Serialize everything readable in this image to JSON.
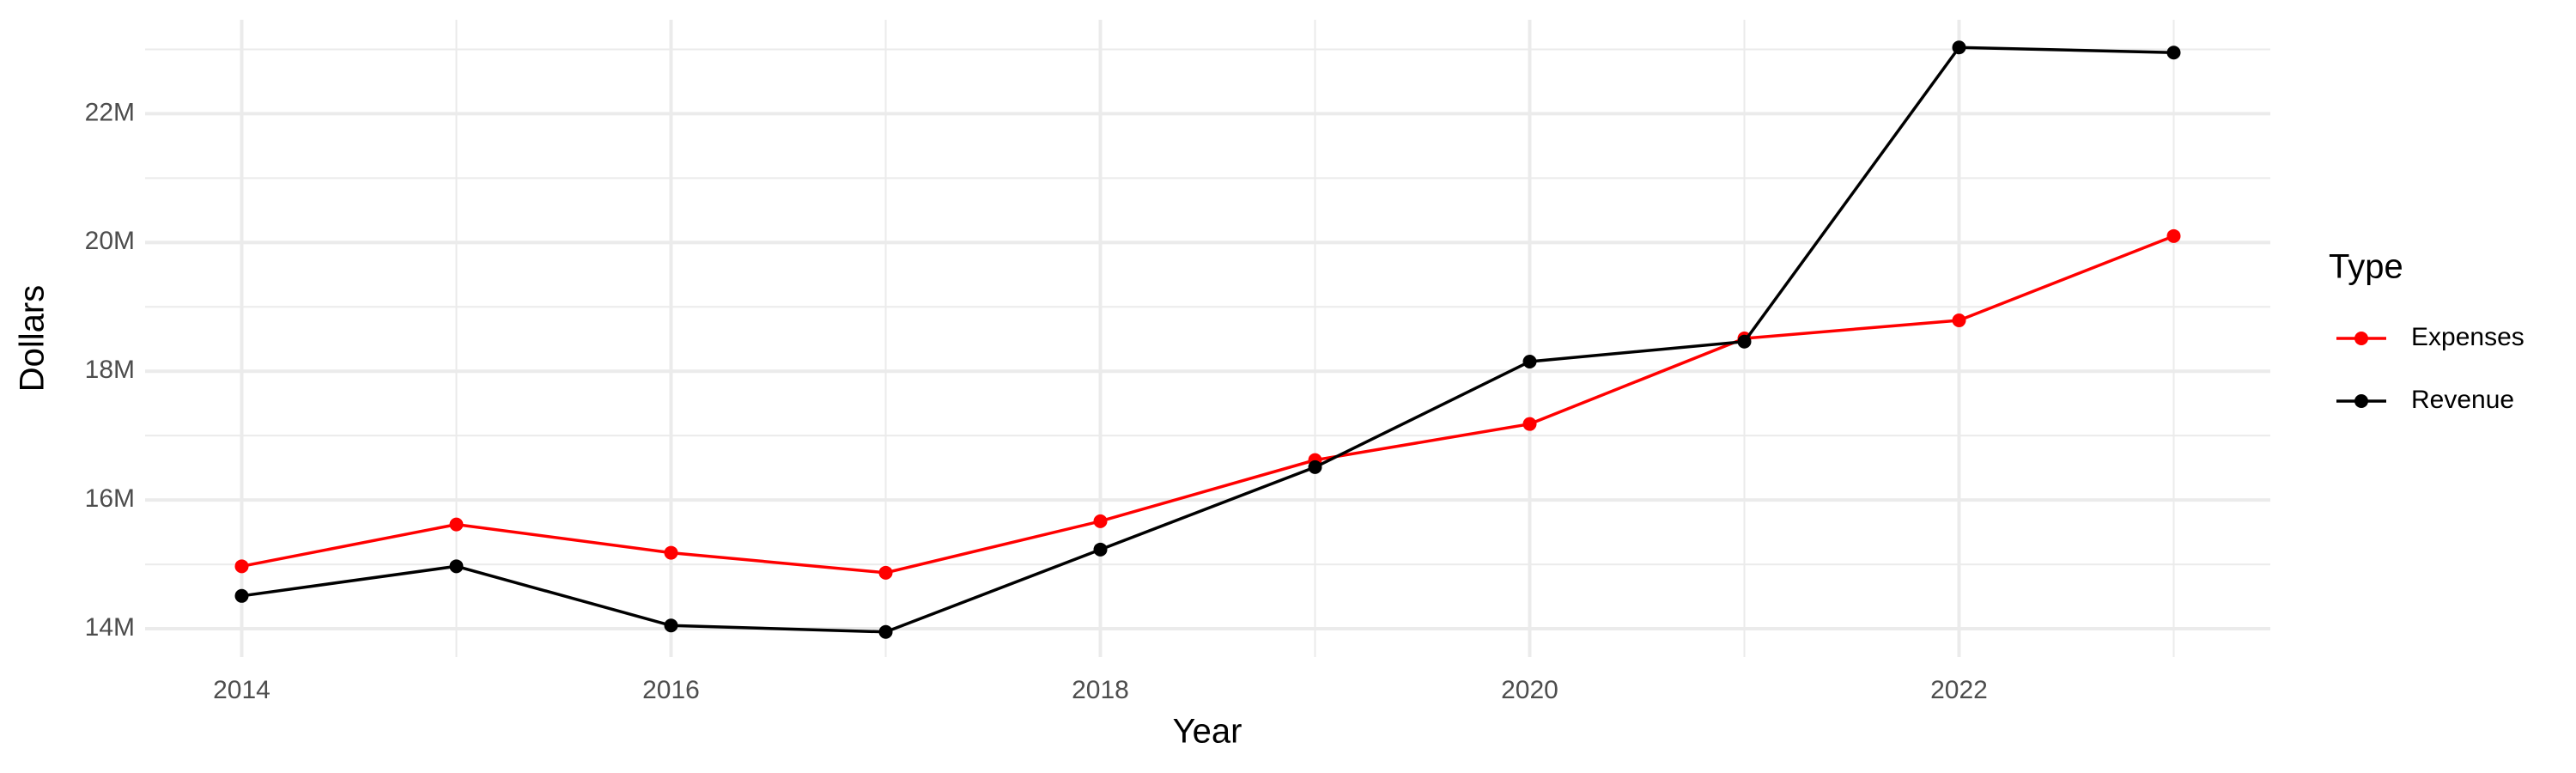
{
  "chart_data": {
    "type": "line",
    "x_label": "Year",
    "y_label": "Dollars",
    "legend_title": "Type",
    "x": [
      2014,
      2015,
      2016,
      2017,
      2018,
      2019,
      2020,
      2021,
      2022,
      2023
    ],
    "series": [
      {
        "name": "Expenses",
        "color": "#ff0000",
        "values": [
          14970000,
          15620000,
          15180000,
          14870000,
          15670000,
          16620000,
          17180000,
          18510000,
          18790000,
          20100000
        ]
      },
      {
        "name": "Revenue",
        "color": "#000000",
        "values": [
          14510000,
          14970000,
          14050000,
          13950000,
          15230000,
          16510000,
          18150000,
          18460000,
          23030000,
          22950000
        ]
      }
    ],
    "xlim": [
      2013.55,
      2023.45
    ],
    "ylim": [
      13560000,
      23460000
    ],
    "xticks": [
      2014,
      2016,
      2018,
      2020,
      2022
    ],
    "yticks": [
      {
        "value": 14000000,
        "label": "14M"
      },
      {
        "value": 16000000,
        "label": "16M"
      },
      {
        "value": 18000000,
        "label": "18M"
      },
      {
        "value": 20000000,
        "label": "20M"
      },
      {
        "value": 22000000,
        "label": "22M"
      }
    ],
    "grid": true,
    "minor_grid": true,
    "legend_position": "right"
  }
}
